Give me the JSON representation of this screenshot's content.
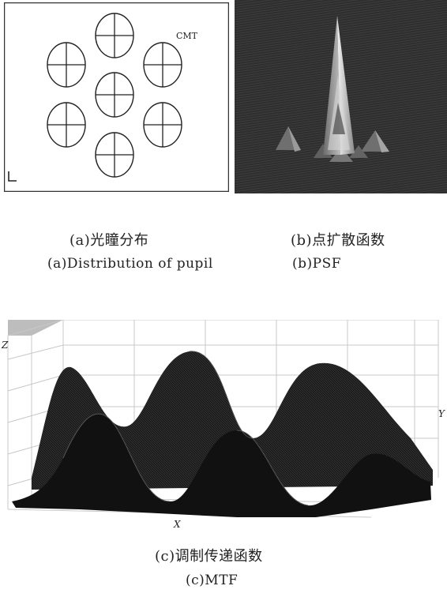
{
  "panel_a": {
    "label": "CMT",
    "pupil_count": 7
  },
  "captions": {
    "a_zh": "(a)光瞳分布",
    "a_en": "(a)Distribution of pupil",
    "b_zh": "(b)点扩散函数",
    "b_en": "(b)PSF",
    "c_zh": "(c)调制传递函数",
    "c_en": "(c)MTF"
  },
  "panel_c": {
    "axis_x": "X",
    "axis_y": "Y",
    "axis_z": "Z"
  },
  "colors": {
    "psf_background": "#2e2e2e",
    "mtf_surface": "#1c1c1c",
    "grid": "#c8c8c8"
  }
}
